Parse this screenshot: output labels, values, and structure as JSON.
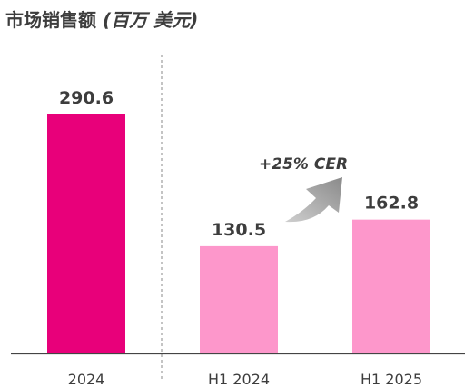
{
  "title": {
    "main": "市场销售额",
    "unit": "(百万 美元)"
  },
  "annotation": {
    "growth_label": "+25% CER"
  },
  "colors": {
    "dark_bar": "#e8007a",
    "light_bar": "#fd97cb",
    "axis": "#444444",
    "text": "#3d3d3d",
    "arrow": "#8a8a8a",
    "divider": "#888888"
  },
  "chart_data": {
    "type": "bar",
    "title": "市场销售额 (百万 美元)",
    "categories": [
      "2024",
      "H1 2024",
      "H1 2025"
    ],
    "values": [
      290.6,
      130.5,
      162.8
    ],
    "data_labels": [
      "290.6",
      "130.5",
      "162.8"
    ],
    "bar_colors": [
      "#e8007a",
      "#fd97cb",
      "#fd97cb"
    ],
    "xlabel": "",
    "ylabel": "",
    "ylim": [
      0,
      290.6
    ],
    "grid": false,
    "legend": "none",
    "annotations": [
      {
        "text": "+25% CER",
        "from": "H1 2024",
        "to": "H1 2025"
      }
    ]
  }
}
